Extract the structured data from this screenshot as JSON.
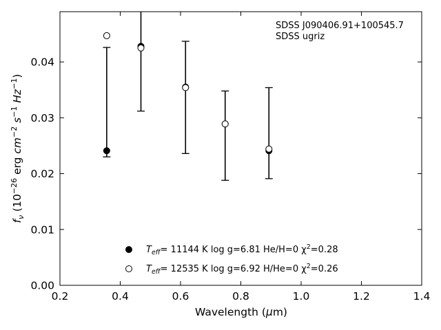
{
  "chart_data": {
    "type": "scatter",
    "xlabel": "Wavelength (μm)",
    "ylabel": "f_ν (10^-26 erg cm^-2 s^-1 Hz^-1)",
    "xlim": [
      0.2,
      1.4
    ],
    "ylim": [
      0.0,
      0.049
    ],
    "xticks": [
      "0.2",
      "0.4",
      "0.6",
      "0.8",
      "1.0",
      "1.2",
      "1.4"
    ],
    "yticks": [
      "0.00",
      "0.01",
      "0.02",
      "0.03",
      "0.04"
    ],
    "annotations": [
      "SDSS J090406.91+100545.7",
      "SDSS ugriz"
    ],
    "observed": {
      "x": [
        0.3551,
        0.4686,
        0.6166,
        0.748,
        0.8932
      ],
      "y": [
        0.0241,
        0.0428,
        0.0355,
        0.0289,
        0.0241
      ],
      "yerr_low": [
        0.023,
        0.0312,
        0.0236,
        0.0188,
        0.0191
      ],
      "yerr_high": [
        0.0426,
        0.049,
        0.0437,
        0.0348,
        0.0354
      ]
    },
    "series": [
      {
        "marker": "filled-circle",
        "label_prefix": "T",
        "label_sub": "eff",
        "label_text": "= 11144 K  log g=6.81  He/H=0  χ",
        "label_sup": "2",
        "label_suffix": "=0.28",
        "x": [
          0.3551,
          0.4686,
          0.6166,
          0.748,
          0.8932
        ],
        "y": [
          0.0241,
          0.0428,
          0.0355,
          0.0289,
          0.0241
        ]
      },
      {
        "marker": "open-circle",
        "label_prefix": "T",
        "label_sub": "eff",
        "label_text": "= 12535 K  log g=6.92  H/He=0  χ",
        "label_sup": "2",
        "label_suffix": "=0.26",
        "x": [
          0.3551,
          0.4686,
          0.6166,
          0.748,
          0.8932
        ],
        "y": [
          0.0447,
          0.0425,
          0.0354,
          0.0289,
          0.0244
        ]
      }
    ],
    "legend_position": "bottom-center",
    "grid": false
  }
}
